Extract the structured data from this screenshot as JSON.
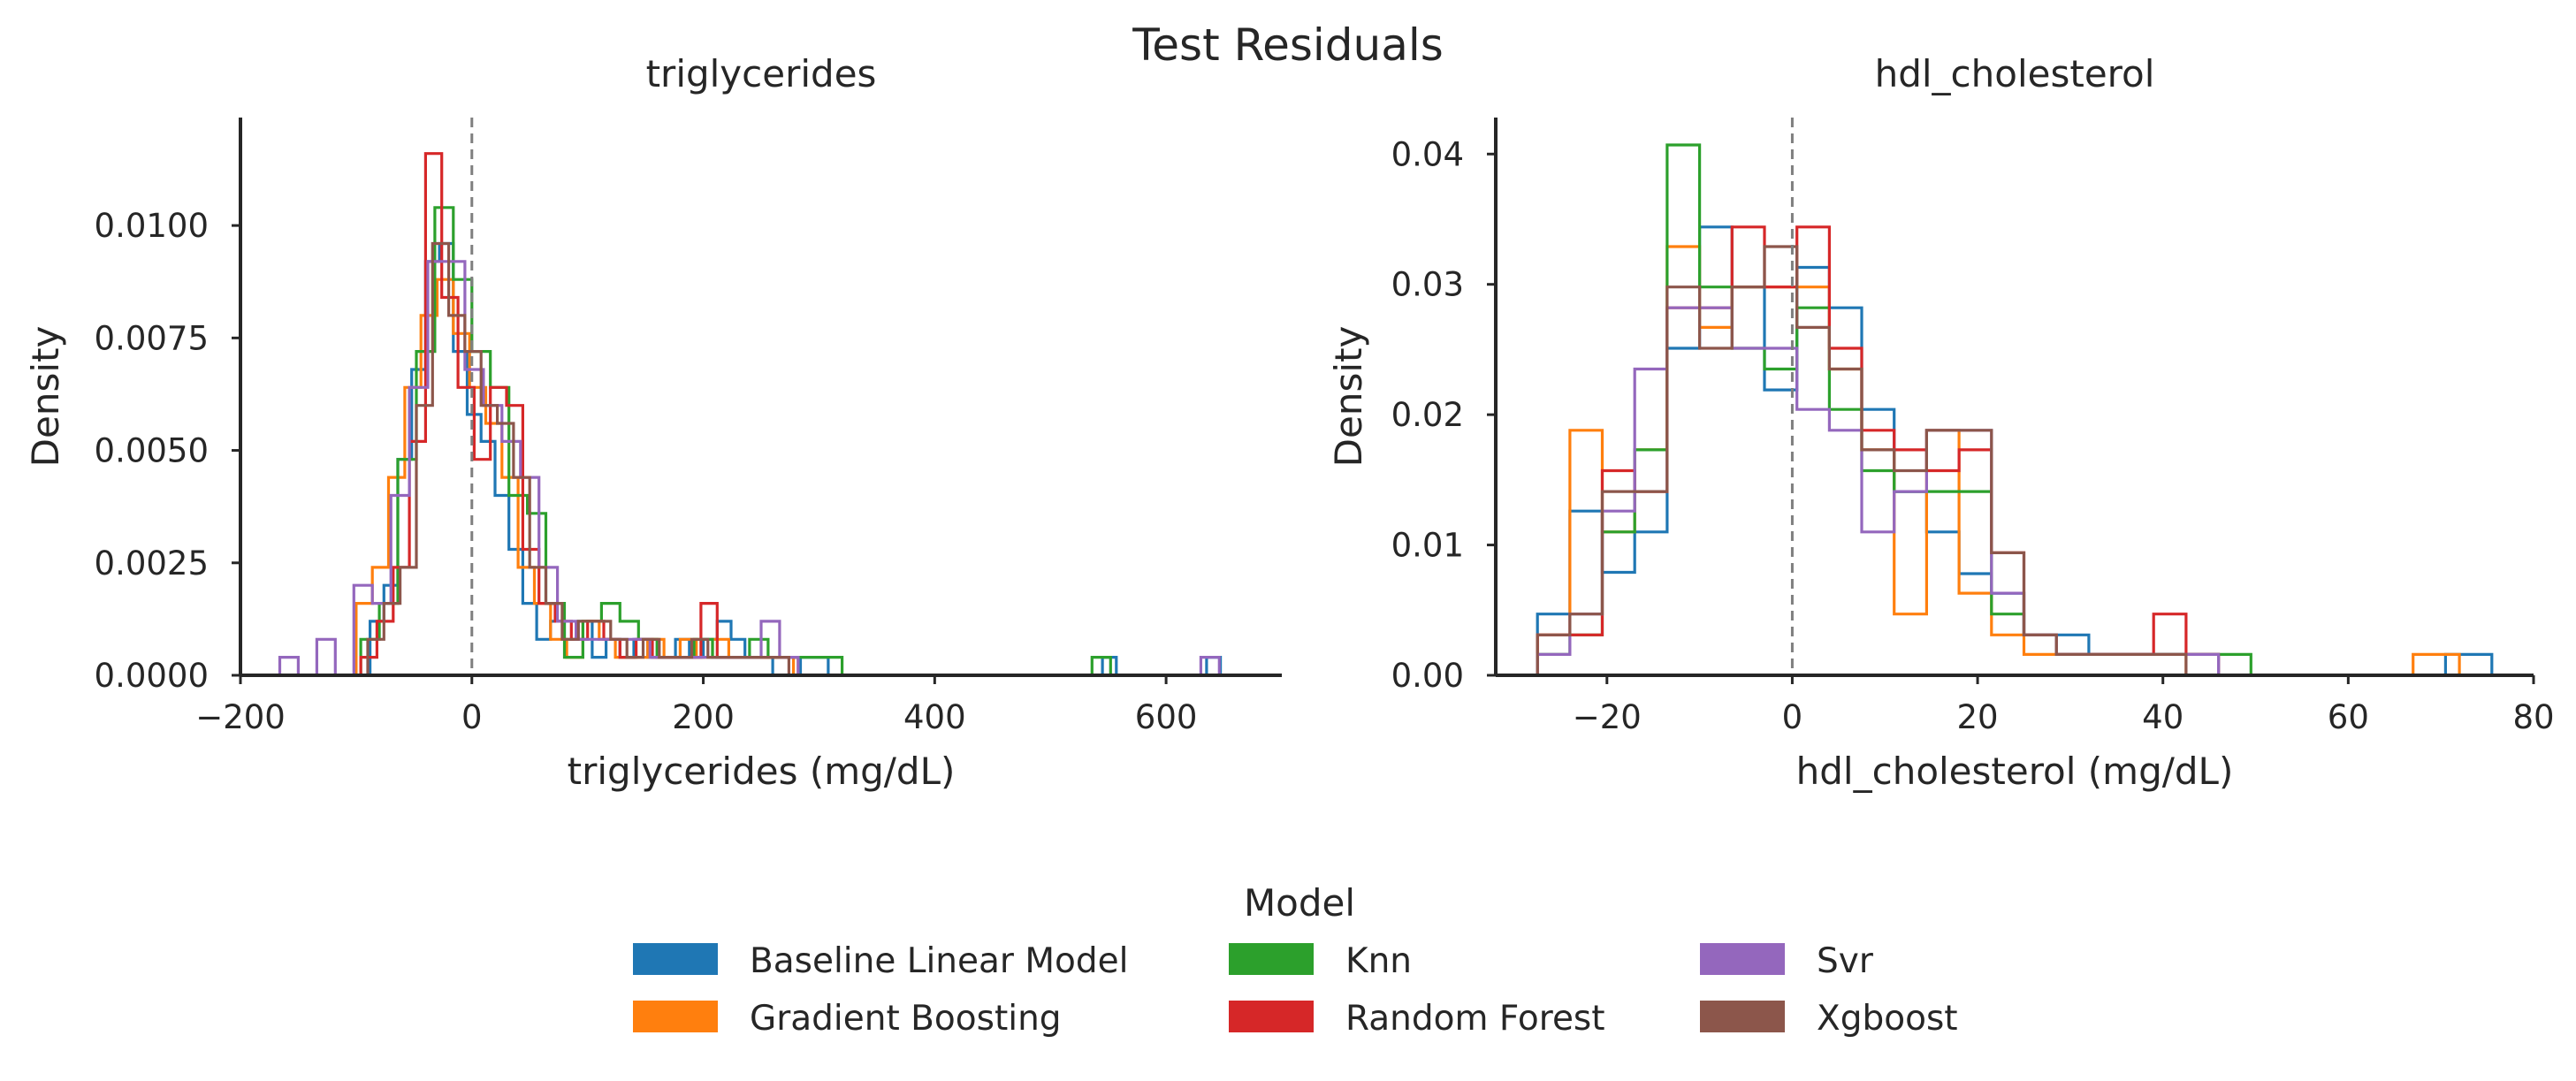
{
  "figure": {
    "suptitle": "Test Residuals"
  },
  "legend": {
    "title": "Model",
    "items": [
      {
        "label": "Baseline Linear Model",
        "color": "#1f77b4"
      },
      {
        "label": "Gradient Boosting",
        "color": "#ff7f0e"
      },
      {
        "label": "Knn",
        "color": "#2ca02c"
      },
      {
        "label": "Random Forest",
        "color": "#d62728"
      },
      {
        "label": "Svr",
        "color": "#9467bd"
      },
      {
        "label": "Xgboost",
        "color": "#8c564b"
      }
    ]
  },
  "chart_data": [
    {
      "type": "histogram-step",
      "title": "triglycerides",
      "xlabel": "triglycerides (mg/dL)",
      "ylabel": "Density",
      "xlim": [
        -200,
        700
      ],
      "ylim": [
        0,
        0.0124
      ],
      "xticks": [
        -200,
        0,
        200,
        400,
        600
      ],
      "xtick_labels": [
        "−200",
        "0",
        "200",
        "400",
        "600"
      ],
      "yticks": [
        0,
        0.0025,
        0.005,
        0.0075,
        0.01
      ],
      "ytick_labels": [
        "0.0000",
        "0.0025",
        "0.0050",
        "0.0075",
        "0.0100"
      ],
      "reference_line_x": 0,
      "series": [
        {
          "name": "Baseline Linear Model",
          "color": "#1f77b4",
          "edges": [
            -100,
            -88,
            -76,
            -64,
            -52,
            -40,
            -28,
            -16,
            -4,
            8,
            20,
            32,
            44,
            56,
            68,
            80,
            92,
            104,
            116,
            128,
            140,
            152,
            164,
            176,
            188,
            200,
            212,
            224,
            236,
            248,
            260,
            272,
            284,
            296,
            308,
            545,
            557,
            569,
            635,
            647,
            659
          ],
          "values": [
            0,
            0.0012,
            0.002,
            0.0048,
            0.0068,
            0.0092,
            0.0096,
            0.0072,
            0.0058,
            0.0052,
            0.004,
            0.0028,
            0.0016,
            0.0008,
            0.0012,
            0.0008,
            0.0012,
            0.0004,
            0.0008,
            0.0004,
            0.0008,
            0.0004,
            0.0004,
            0.0008,
            0.0004,
            0.0008,
            0.0012,
            0.0008,
            0.0004,
            0.0004,
            0,
            0,
            0.0004,
            0.0004,
            0,
            0.0004,
            0,
            0,
            0.0004,
            0
          ]
        },
        {
          "name": "Gradient Boosting",
          "color": "#ff7f0e",
          "edges": [
            -100,
            -86,
            -72,
            -58,
            -44,
            -30,
            -16,
            -2,
            12,
            26,
            40,
            54,
            68,
            82,
            96,
            110,
            124,
            138,
            152,
            166,
            180,
            194,
            208,
            222,
            236,
            250,
            264,
            278
          ],
          "values": [
            0.0016,
            0.0024,
            0.0044,
            0.0064,
            0.008,
            0.0088,
            0.0076,
            0.0064,
            0.0056,
            0.0044,
            0.0024,
            0.0016,
            0.0008,
            0.0004,
            0.0012,
            0.0008,
            0.0004,
            0.0004,
            0.0008,
            0.0004,
            0.0008,
            0.0004,
            0.0008,
            0.0004,
            0.0004,
            0.0004,
            0.0004
          ]
        },
        {
          "name": "Knn",
          "color": "#2ca02c",
          "edges": [
            -96,
            -80,
            -64,
            -48,
            -32,
            -16,
            0,
            16,
            32,
            48,
            64,
            80,
            96,
            112,
            128,
            144,
            160,
            176,
            192,
            208,
            224,
            240,
            256,
            272,
            288,
            304,
            320,
            536,
            552,
            568
          ],
          "values": [
            0.0008,
            0.0016,
            0.0048,
            0.0072,
            0.0104,
            0.0088,
            0.0072,
            0.0064,
            0.004,
            0.0036,
            0.0016,
            0.0004,
            0.0012,
            0.0016,
            0.0012,
            0.0008,
            0.0004,
            0.0004,
            0.0008,
            0.0004,
            0.0004,
            0.0008,
            0.0004,
            0.0004,
            0.0004,
            0.0004,
            0,
            0.0004,
            0
          ]
        },
        {
          "name": "Random Forest",
          "color": "#d62728",
          "edges": [
            -96,
            -82,
            -68,
            -54,
            -40,
            -26,
            -12,
            2,
            16,
            30,
            44,
            58,
            72,
            86,
            100,
            114,
            128,
            142,
            156,
            170,
            184,
            198,
            212,
            226,
            240,
            254,
            268,
            282
          ],
          "values": [
            0.0004,
            0.0012,
            0.0024,
            0.0052,
            0.0116,
            0.0084,
            0.0064,
            0.0048,
            0.0064,
            0.006,
            0.0028,
            0.0016,
            0.0012,
            0.0008,
            0.0012,
            0.0008,
            0.0004,
            0.0008,
            0.0004,
            0.0004,
            0.0004,
            0.0016,
            0.0004,
            0.0004,
            0.0004,
            0.0004,
            0.0004
          ]
        },
        {
          "name": "Svr",
          "color": "#9467bd",
          "edges": [
            -166,
            -150,
            -134,
            -118,
            -102,
            -86,
            -70,
            -54,
            -38,
            -22,
            -6,
            10,
            26,
            42,
            58,
            74,
            90,
            106,
            122,
            138,
            154,
            170,
            186,
            202,
            218,
            234,
            250,
            266,
            282,
            630,
            646,
            662
          ],
          "values": [
            0.0004,
            0,
            0.0008,
            0,
            0.002,
            0.0016,
            0.004,
            0.0064,
            0.0092,
            0.0092,
            0.0068,
            0.006,
            0.0052,
            0.0044,
            0.0024,
            0.0012,
            0.0008,
            0.0008,
            0.0008,
            0.0008,
            0.0004,
            0.0004,
            0.0004,
            0.0004,
            0.0004,
            0.0004,
            0.0012,
            0.0004,
            0,
            0.0004,
            0
          ]
        },
        {
          "name": "Xgboost",
          "color": "#8c564b",
          "edges": [
            -90,
            -76,
            -62,
            -48,
            -34,
            -20,
            -6,
            8,
            22,
            36,
            50,
            64,
            78,
            92,
            106,
            120,
            134,
            148,
            162,
            176,
            190,
            204,
            218,
            232,
            246,
            260,
            274
          ],
          "values": [
            0.0008,
            0.0016,
            0.0024,
            0.006,
            0.0096,
            0.008,
            0.0072,
            0.006,
            0.0056,
            0.0044,
            0.0024,
            0.0016,
            0.0008,
            0.0012,
            0.0012,
            0.0008,
            0.0004,
            0.0008,
            0.0004,
            0.0004,
            0.0008,
            0.0004,
            0.0004,
            0.0004,
            0.0004,
            0.0004
          ]
        }
      ]
    },
    {
      "type": "histogram-step",
      "title": "hdl_cholesterol",
      "xlabel": "hdl_cholesterol (mg/dL)",
      "ylabel": "Density",
      "xlim": [
        -32,
        80
      ],
      "ylim": [
        0,
        0.0428
      ],
      "xticks": [
        -20,
        0,
        20,
        40,
        60,
        80
      ],
      "xtick_labels": [
        "−20",
        "0",
        "20",
        "40",
        "60",
        "80"
      ],
      "yticks": [
        0,
        0.01,
        0.02,
        0.03,
        0.04
      ],
      "ytick_labels": [
        "0.00",
        "0.01",
        "0.02",
        "0.03",
        "0.04"
      ],
      "reference_line_x": 0,
      "series": [
        {
          "name": "Baseline Linear Model",
          "color": "#1f77b4",
          "edges": [
            -27.5,
            -24,
            -20.5,
            -17,
            -13.5,
            -10,
            -6.5,
            -3,
            0.5,
            4,
            7.5,
            11,
            14.5,
            18,
            21.5,
            25,
            28.5,
            32,
            35.5,
            39,
            42.5,
            46,
            49.5,
            53,
            56.5,
            60,
            63.5,
            67,
            70.5,
            74,
            75.5
          ],
          "values": [
            0.0047,
            0.0126,
            0.0079,
            0.011,
            0.0251,
            0.0344,
            0.0298,
            0.0219,
            0.0313,
            0.0282,
            0.0204,
            0.0141,
            0.011,
            0.0078,
            0.0063,
            0.0031,
            0.0031,
            0.0016,
            0.0016,
            0.0016,
            0.0016,
            0,
            0,
            0,
            0,
            0,
            0,
            0,
            0.0016,
            0.0016
          ]
        },
        {
          "name": "Gradient Boosting",
          "color": "#ff7f0e",
          "edges": [
            -27.5,
            -24,
            -20.5,
            -17,
            -13.5,
            -10,
            -6.5,
            -3,
            0.5,
            4,
            7.5,
            11,
            14.5,
            18,
            21.5,
            25,
            28.5,
            32,
            35.5,
            39,
            42.5,
            46,
            49.5,
            53,
            56.5,
            60,
            63.5,
            67,
            70.5,
            72
          ],
          "values": [
            0.0031,
            0.0188,
            0.011,
            0.0173,
            0.0329,
            0.0267,
            0.0298,
            0.0298,
            0.0298,
            0.0235,
            0.0173,
            0.0047,
            0.0188,
            0.0063,
            0.0031,
            0.0016,
            0.0016,
            0.0016,
            0.0016,
            0.0016,
            0,
            0,
            0,
            0,
            0,
            0,
            0,
            0.0016,
            0.0016
          ]
        },
        {
          "name": "Knn",
          "color": "#2ca02c",
          "edges": [
            -27.5,
            -24,
            -20.5,
            -17,
            -13.5,
            -10,
            -6.5,
            -3,
            0.5,
            4,
            7.5,
            11,
            14.5,
            18,
            21.5,
            25,
            28.5,
            32,
            35.5,
            39,
            42.5,
            46,
            49.5,
            53
          ],
          "values": [
            0.0016,
            0.0031,
            0.011,
            0.0173,
            0.0407,
            0.0298,
            0.0251,
            0.0235,
            0.0282,
            0.0204,
            0.0157,
            0.0141,
            0.0141,
            0.0141,
            0.0047,
            0.0031,
            0.0016,
            0.0016,
            0.0016,
            0.0016,
            0.0016,
            0.0016,
            0
          ]
        },
        {
          "name": "Random Forest",
          "color": "#d62728",
          "edges": [
            -27.5,
            -24,
            -20.5,
            -17,
            -13.5,
            -10,
            -6.5,
            -3,
            0.5,
            4,
            7.5,
            11,
            14.5,
            18,
            21.5,
            25,
            28.5,
            32,
            35.5,
            39,
            42.5,
            46
          ],
          "values": [
            0.0031,
            0.0031,
            0.0157,
            0.0141,
            0.0282,
            0.0282,
            0.0344,
            0.0298,
            0.0344,
            0.0251,
            0.0188,
            0.0173,
            0.0157,
            0.0173,
            0.0094,
            0.0031,
            0.0016,
            0.0016,
            0.0016,
            0.0047,
            0.0016
          ]
        },
        {
          "name": "Svr",
          "color": "#9467bd",
          "edges": [
            -27.5,
            -24,
            -20.5,
            -17,
            -13.5,
            -10,
            -6.5,
            -3,
            0.5,
            4,
            7.5,
            11,
            14.5,
            18,
            21.5,
            25,
            28.5,
            32,
            35.5,
            39,
            42.5,
            46
          ],
          "values": [
            0.0016,
            0.0047,
            0.0126,
            0.0235,
            0.0282,
            0.0282,
            0.0251,
            0.0251,
            0.0204,
            0.0188,
            0.011,
            0.0141,
            0.0188,
            0.0188,
            0.0063,
            0.0031,
            0.0016,
            0.0016,
            0.0016,
            0.0016,
            0.0016
          ]
        },
        {
          "name": "Xgboost",
          "color": "#8c564b",
          "edges": [
            -27.5,
            -24,
            -20.5,
            -17,
            -13.5,
            -10,
            -6.5,
            -3,
            0.5,
            4,
            7.5,
            11,
            14.5,
            18,
            21.5,
            25,
            28.5,
            32,
            35.5,
            39,
            42.5
          ],
          "values": [
            0.0031,
            0.0047,
            0.0141,
            0.0141,
            0.0298,
            0.0251,
            0.0298,
            0.0329,
            0.0267,
            0.0235,
            0.0173,
            0.0157,
            0.0188,
            0.0188,
            0.0094,
            0.0031,
            0.0016,
            0.0016,
            0.0016,
            0.0016
          ]
        }
      ]
    }
  ]
}
